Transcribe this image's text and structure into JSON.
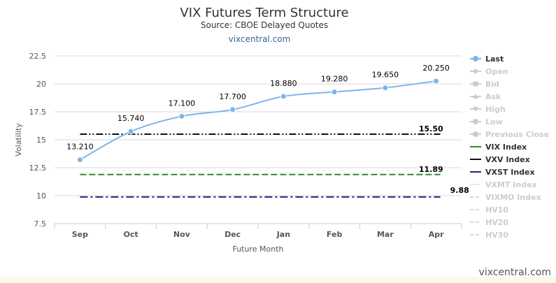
{
  "header": {
    "title": "VIX Futures Term Structure",
    "subtitle": "Source: CBOE Delayed Quotes",
    "link": "vixcentral.com"
  },
  "footer": {
    "watermark": "vixcentral.com"
  },
  "colors": {
    "last": "#7cb5ec",
    "vix_index": "#2e8b2e",
    "vxv_index": "#111111",
    "vxst_index": "#22228a",
    "inactive": "#cccccc",
    "footer_band": "#fcf8ea"
  },
  "chart_data": {
    "type": "line",
    "title": "VIX Futures Term Structure",
    "subtitle": "Source: CBOE Delayed Quotes",
    "xlabel": "Future Month",
    "ylabel": "Volatility",
    "categories": [
      "Sep",
      "Oct",
      "Nov",
      "Dec",
      "Jan",
      "Feb",
      "Mar",
      "Apr"
    ],
    "yticks": [
      "7.5",
      "10",
      "12.5",
      "15",
      "17.5",
      "20",
      "22.5"
    ],
    "ylim": [
      7.5,
      22.5
    ],
    "grid": true,
    "legend_position": "right",
    "series": [
      {
        "name": "Last",
        "values": [
          13.21,
          15.74,
          17.1,
          17.7,
          18.88,
          19.28,
          19.65,
          20.25
        ],
        "labels": [
          "13.210",
          "15.740",
          "17.100",
          "17.700",
          "18.880",
          "19.280",
          "19.650",
          "20.250"
        ],
        "style": "spline-markers",
        "color": "#7cb5ec"
      }
    ],
    "reference_lines": [
      {
        "name": "VXV Index",
        "value": 15.5,
        "label": "15.50",
        "color": "#111111",
        "dash": "dashdotdot"
      },
      {
        "name": "VIX Index",
        "value": 11.89,
        "label": "11.89",
        "color": "#2e8b2e",
        "dash": "dash"
      },
      {
        "name": "VXST Index",
        "value": 9.88,
        "label": "9.88",
        "color": "#22228a",
        "dash": "dashdot"
      }
    ],
    "legend": [
      {
        "name": "Last",
        "active": true,
        "symbol": "line-circle",
        "color": "#7cb5ec"
      },
      {
        "name": "Open",
        "active": false,
        "symbol": "line-diamond"
      },
      {
        "name": "Bid",
        "active": false,
        "symbol": "line-square"
      },
      {
        "name": "Ask",
        "active": false,
        "symbol": "line-triangle"
      },
      {
        "name": "High",
        "active": false,
        "symbol": "line-triangle-down"
      },
      {
        "name": "Low",
        "active": false,
        "symbol": "line-circle"
      },
      {
        "name": "Previous Close",
        "active": false,
        "symbol": "line-circle"
      },
      {
        "name": "VIX Index",
        "active": true,
        "symbol": "line",
        "color": "#2e8b2e"
      },
      {
        "name": "VXV Index",
        "active": true,
        "symbol": "line",
        "color": "#111111"
      },
      {
        "name": "VXST Index",
        "active": true,
        "symbol": "line",
        "color": "#22228a"
      },
      {
        "name": "VXMT Index",
        "active": false,
        "symbol": "dotted"
      },
      {
        "name": "VIXMO Index",
        "active": false,
        "symbol": "dashed"
      },
      {
        "name": "HV10",
        "active": false,
        "symbol": "dashed"
      },
      {
        "name": "HV20",
        "active": false,
        "symbol": "dashed"
      },
      {
        "name": "HV30",
        "active": false,
        "symbol": "dashed"
      }
    ]
  }
}
